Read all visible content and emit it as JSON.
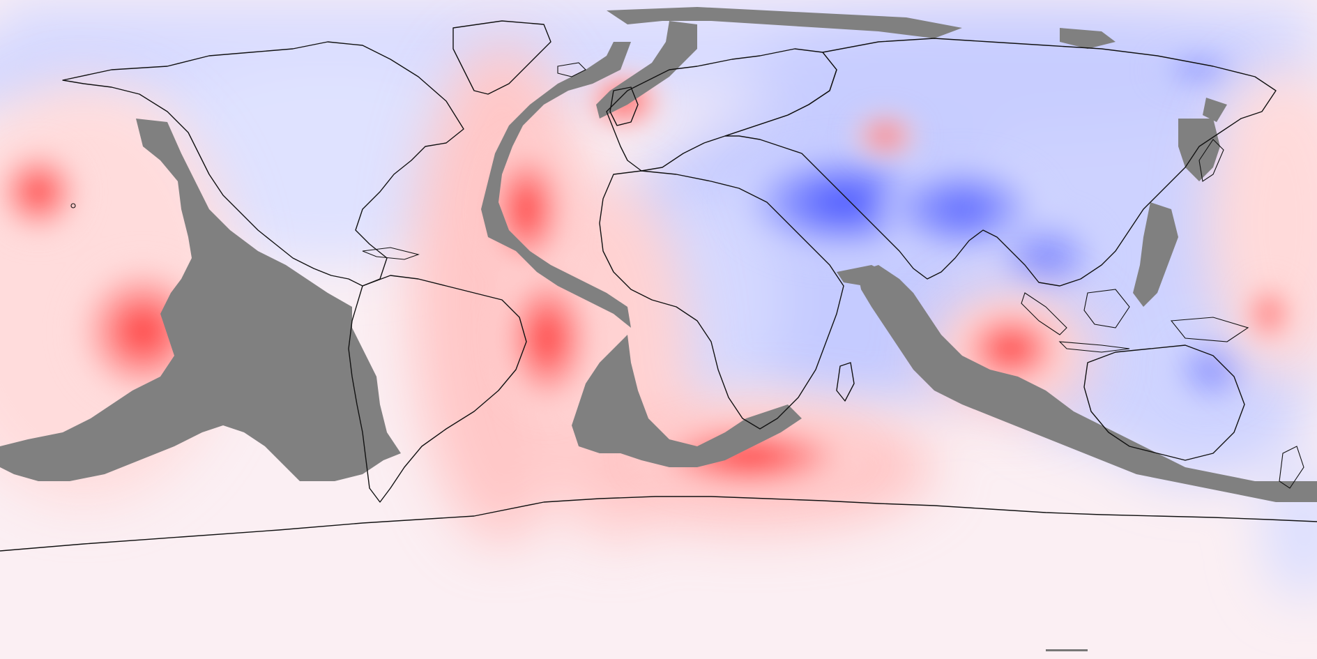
{
  "map": {
    "type": "contour-field-map",
    "projection": "equirectangular",
    "extent": {
      "lon": [
        -180,
        180
      ],
      "lat": [
        -90,
        90
      ]
    },
    "colors": {
      "positive_max": "#ff3a3a",
      "neutral": "#ffffff",
      "negative_max": "#3a4dff",
      "mask": "#808080",
      "coastline": "#111111"
    },
    "labels_printed": false
  }
}
